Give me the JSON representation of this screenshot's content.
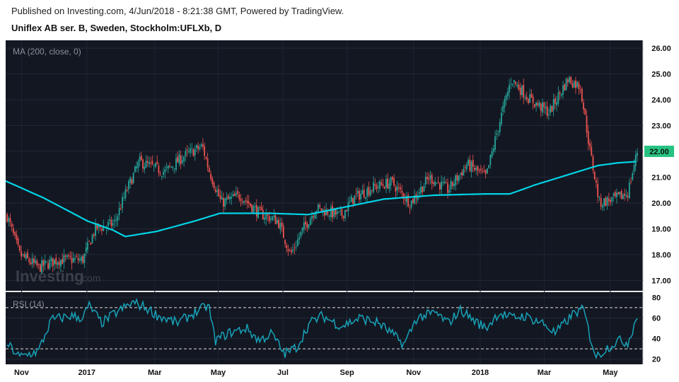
{
  "header": {
    "published": "Published on Investing.com, 4/Jun/2018 - 8:21:38 GMT, Powered by TradingView.",
    "symbol": "Uniflex AB ser. B, Sweden, Stockholm:UFLXb, D"
  },
  "watermark": {
    "brand": "Investing",
    "suffix": ".com"
  },
  "colors": {
    "background": "#131722",
    "up": "#26a69a",
    "down": "#ef5350",
    "ma": "#00d4e6",
    "rsi": "#17a2b8",
    "last_price_tag": "#26c281"
  },
  "chart_data": [
    {
      "type": "candlestick",
      "indicator_label": "MA (200, close, 0)",
      "ylim": [
        16.6,
        26.3
      ],
      "y_ticks": [
        "26.00",
        "25.00",
        "24.00",
        "23.00",
        "22.00",
        "21.00",
        "20.00",
        "19.00",
        "18.00",
        "17.00"
      ],
      "last_price": "22.00",
      "x_ticks": [
        "Nov",
        "2017",
        "Mar",
        "May",
        "Jul",
        "Sep",
        "Nov",
        "2018",
        "Mar",
        "May"
      ],
      "close_series_anchors": [
        {
          "x": 0.0,
          "y": 19.5
        },
        {
          "x": 0.02,
          "y": 18.0
        },
        {
          "x": 0.05,
          "y": 17.5
        },
        {
          "x": 0.08,
          "y": 17.8
        },
        {
          "x": 0.12,
          "y": 17.8
        },
        {
          "x": 0.14,
          "y": 19.0
        },
        {
          "x": 0.17,
          "y": 19.2
        },
        {
          "x": 0.19,
          "y": 20.5
        },
        {
          "x": 0.21,
          "y": 21.6
        },
        {
          "x": 0.25,
          "y": 21.2
        },
        {
          "x": 0.28,
          "y": 21.8
        },
        {
          "x": 0.31,
          "y": 22.2
        },
        {
          "x": 0.32,
          "y": 21.3
        },
        {
          "x": 0.34,
          "y": 20.0
        },
        {
          "x": 0.37,
          "y": 20.3
        },
        {
          "x": 0.4,
          "y": 19.6
        },
        {
          "x": 0.43,
          "y": 19.3
        },
        {
          "x": 0.45,
          "y": 18.0
        },
        {
          "x": 0.47,
          "y": 19.0
        },
        {
          "x": 0.49,
          "y": 19.8
        },
        {
          "x": 0.53,
          "y": 19.5
        },
        {
          "x": 0.55,
          "y": 20.2
        },
        {
          "x": 0.58,
          "y": 20.6
        },
        {
          "x": 0.61,
          "y": 20.8
        },
        {
          "x": 0.64,
          "y": 20.0
        },
        {
          "x": 0.67,
          "y": 21.0
        },
        {
          "x": 0.7,
          "y": 20.5
        },
        {
          "x": 0.73,
          "y": 21.5
        },
        {
          "x": 0.76,
          "y": 21.0
        },
        {
          "x": 0.78,
          "y": 23.0
        },
        {
          "x": 0.8,
          "y": 24.8
        },
        {
          "x": 0.83,
          "y": 24.0
        },
        {
          "x": 0.86,
          "y": 23.5
        },
        {
          "x": 0.89,
          "y": 24.8
        },
        {
          "x": 0.91,
          "y": 24.5
        },
        {
          "x": 0.925,
          "y": 22.0
        },
        {
          "x": 0.94,
          "y": 20.0
        },
        {
          "x": 0.97,
          "y": 20.2
        },
        {
          "x": 0.985,
          "y": 20.4
        },
        {
          "x": 1.0,
          "y": 22.0
        }
      ],
      "ma_series_anchors": [
        {
          "x": 0.0,
          "y": 20.85
        },
        {
          "x": 0.06,
          "y": 20.2
        },
        {
          "x": 0.13,
          "y": 19.3
        },
        {
          "x": 0.17,
          "y": 18.95
        },
        {
          "x": 0.19,
          "y": 18.7
        },
        {
          "x": 0.24,
          "y": 18.9
        },
        {
          "x": 0.3,
          "y": 19.3
        },
        {
          "x": 0.34,
          "y": 19.6
        },
        {
          "x": 0.42,
          "y": 19.6
        },
        {
          "x": 0.48,
          "y": 19.55
        },
        {
          "x": 0.53,
          "y": 19.8
        },
        {
          "x": 0.6,
          "y": 20.15
        },
        {
          "x": 0.68,
          "y": 20.3
        },
        {
          "x": 0.76,
          "y": 20.35
        },
        {
          "x": 0.8,
          "y": 20.35
        },
        {
          "x": 0.84,
          "y": 20.7
        },
        {
          "x": 0.9,
          "y": 21.15
        },
        {
          "x": 0.94,
          "y": 21.45
        },
        {
          "x": 0.97,
          "y": 21.55
        },
        {
          "x": 1.0,
          "y": 21.6
        }
      ]
    },
    {
      "type": "line",
      "indicator_label": "RSI (14)",
      "ylim": [
        15,
        85
      ],
      "y_ticks": [
        "80",
        "60",
        "40",
        "20"
      ],
      "bands": [
        30,
        70
      ],
      "rsi_series_anchors": [
        {
          "x": 0.0,
          "y": 35
        },
        {
          "x": 0.02,
          "y": 22
        },
        {
          "x": 0.05,
          "y": 28
        },
        {
          "x": 0.07,
          "y": 58
        },
        {
          "x": 0.1,
          "y": 62
        },
        {
          "x": 0.12,
          "y": 60
        },
        {
          "x": 0.13,
          "y": 72
        },
        {
          "x": 0.15,
          "y": 55
        },
        {
          "x": 0.17,
          "y": 64
        },
        {
          "x": 0.2,
          "y": 75
        },
        {
          "x": 0.22,
          "y": 70
        },
        {
          "x": 0.24,
          "y": 62
        },
        {
          "x": 0.27,
          "y": 55
        },
        {
          "x": 0.3,
          "y": 66
        },
        {
          "x": 0.32,
          "y": 72
        },
        {
          "x": 0.33,
          "y": 38
        },
        {
          "x": 0.35,
          "y": 45
        },
        {
          "x": 0.38,
          "y": 50
        },
        {
          "x": 0.4,
          "y": 38
        },
        {
          "x": 0.42,
          "y": 45
        },
        {
          "x": 0.44,
          "y": 25
        },
        {
          "x": 0.46,
          "y": 32
        },
        {
          "x": 0.48,
          "y": 55
        },
        {
          "x": 0.5,
          "y": 62
        },
        {
          "x": 0.53,
          "y": 52
        },
        {
          "x": 0.56,
          "y": 60
        },
        {
          "x": 0.59,
          "y": 55
        },
        {
          "x": 0.61,
          "y": 45
        },
        {
          "x": 0.63,
          "y": 34
        },
        {
          "x": 0.65,
          "y": 60
        },
        {
          "x": 0.68,
          "y": 65
        },
        {
          "x": 0.7,
          "y": 55
        },
        {
          "x": 0.72,
          "y": 68
        },
        {
          "x": 0.74,
          "y": 58
        },
        {
          "x": 0.76,
          "y": 50
        },
        {
          "x": 0.78,
          "y": 65
        },
        {
          "x": 0.8,
          "y": 60
        },
        {
          "x": 0.82,
          "y": 62
        },
        {
          "x": 0.85,
          "y": 55
        },
        {
          "x": 0.87,
          "y": 45
        },
        {
          "x": 0.9,
          "y": 65
        },
        {
          "x": 0.915,
          "y": 68
        },
        {
          "x": 0.925,
          "y": 42
        },
        {
          "x": 0.935,
          "y": 22
        },
        {
          "x": 0.95,
          "y": 30
        },
        {
          "x": 0.97,
          "y": 38
        },
        {
          "x": 0.985,
          "y": 36
        },
        {
          "x": 1.0,
          "y": 62
        }
      ]
    }
  ]
}
